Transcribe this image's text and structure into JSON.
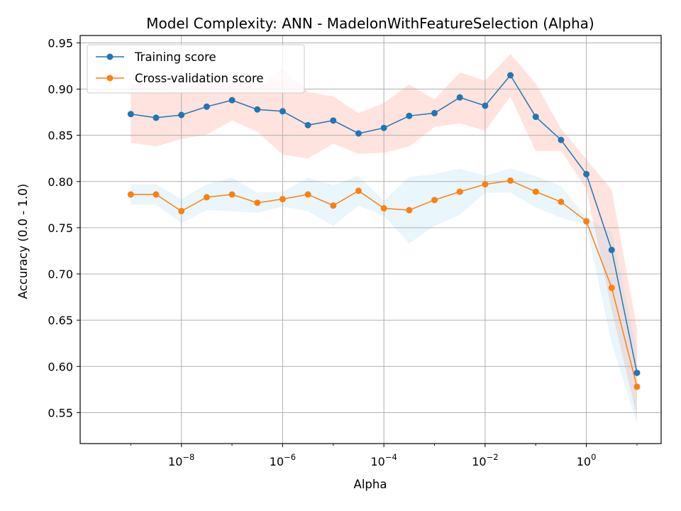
{
  "chart_data": {
    "type": "line",
    "title": "Model Complexity: ANN - MadelonWithFeatureSelection (Alpha)",
    "xlabel": "Alpha",
    "ylabel": "Accuracy (0.0 - 1.0)",
    "x_scale": "log",
    "xlim": [
      1e-10,
      30
    ],
    "ylim": [
      0.5165,
      0.958
    ],
    "grid": true,
    "legend_position": "upper-left",
    "x": [
      1e-09,
      3.16e-09,
      1e-08,
      3.16e-08,
      1e-07,
      3.16e-07,
      1e-06,
      3.16e-06,
      1e-05,
      3.16e-05,
      0.0001,
      0.000316,
      0.001,
      0.00316,
      0.01,
      0.0316,
      0.1,
      0.316,
      1,
      3.16,
      10
    ],
    "x_tick_values": [
      1e-08,
      1e-06,
      0.0001,
      0.01,
      1
    ],
    "x_ticks": [
      {
        "base": "10",
        "exp": "−8"
      },
      {
        "base": "10",
        "exp": "−6"
      },
      {
        "base": "10",
        "exp": "−4"
      },
      {
        "base": "10",
        "exp": "−2"
      },
      {
        "base": "10",
        "exp": "0"
      }
    ],
    "y_ticks": [
      "0.55",
      "0.60",
      "0.65",
      "0.70",
      "0.75",
      "0.80",
      "0.85",
      "0.90",
      "0.95"
    ],
    "y_tick_values": [
      0.55,
      0.6,
      0.65,
      0.7,
      0.75,
      0.8,
      0.85,
      0.9,
      0.95
    ],
    "series": [
      {
        "name": "Training score",
        "color": "#1f77b4",
        "band_color": "#ff6347",
        "values": [
          0.873,
          0.869,
          0.872,
          0.881,
          0.888,
          0.878,
          0.876,
          0.861,
          0.866,
          0.852,
          0.858,
          0.871,
          0.874,
          0.891,
          0.882,
          0.915,
          0.87,
          0.845,
          0.808,
          0.726,
          0.593
        ],
        "upper": [
          0.905,
          0.9,
          0.898,
          0.912,
          0.911,
          0.902,
          0.922,
          0.897,
          0.892,
          0.874,
          0.885,
          0.905,
          0.889,
          0.918,
          0.909,
          0.938,
          0.906,
          0.857,
          0.824,
          0.791,
          0.641
        ],
        "lower": [
          0.842,
          0.838,
          0.846,
          0.851,
          0.866,
          0.854,
          0.829,
          0.825,
          0.841,
          0.83,
          0.831,
          0.838,
          0.859,
          0.863,
          0.855,
          0.892,
          0.833,
          0.833,
          0.792,
          0.661,
          0.545
        ]
      },
      {
        "name": "Cross-validation score",
        "color": "#ff7f0e",
        "band_color": "#87ceeb",
        "values": [
          0.786,
          0.786,
          0.768,
          0.783,
          0.786,
          0.777,
          0.781,
          0.786,
          0.774,
          0.79,
          0.771,
          0.769,
          0.78,
          0.789,
          0.797,
          0.801,
          0.789,
          0.778,
          0.757,
          0.685,
          0.578
        ],
        "upper": [
          0.797,
          0.797,
          0.781,
          0.797,
          0.804,
          0.788,
          0.789,
          0.804,
          0.796,
          0.806,
          0.779,
          0.805,
          0.808,
          0.814,
          0.806,
          0.814,
          0.806,
          0.795,
          0.761,
          0.745,
          0.618
        ],
        "lower": [
          0.775,
          0.775,
          0.755,
          0.769,
          0.768,
          0.766,
          0.773,
          0.768,
          0.752,
          0.774,
          0.763,
          0.733,
          0.752,
          0.764,
          0.788,
          0.788,
          0.772,
          0.761,
          0.753,
          0.625,
          0.538
        ]
      }
    ]
  }
}
